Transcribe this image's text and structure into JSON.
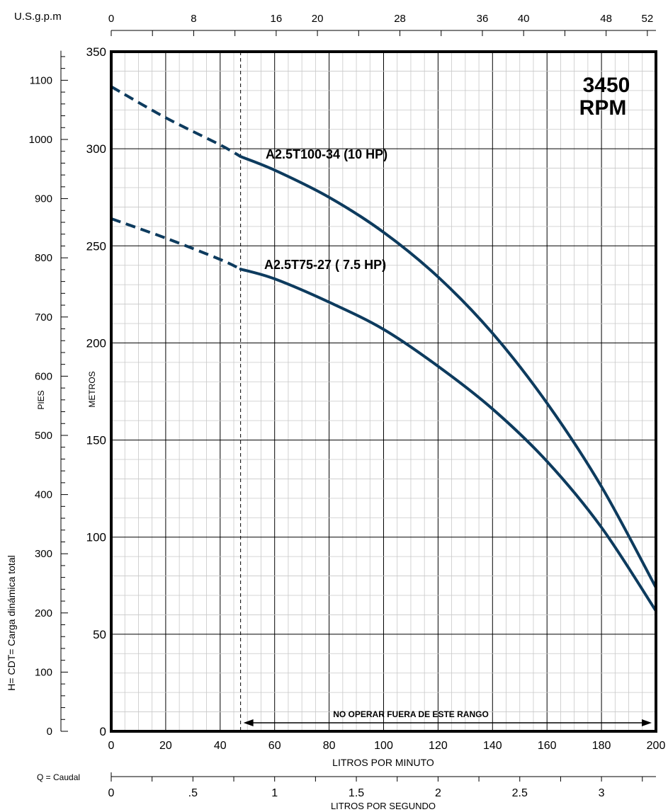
{
  "chart_data": {
    "type": "line",
    "title": "",
    "badge_line1": "3450",
    "badge_line2": "RPM",
    "x_primary": {
      "label": "LITROS POR MINUTO",
      "range": [
        0,
        200
      ],
      "ticks": [
        "0",
        "20",
        "40",
        "60",
        "80",
        "100",
        "120",
        "140",
        "160",
        "180",
        "200"
      ],
      "grid": true
    },
    "y_primary": {
      "label": "METROS",
      "range": [
        0,
        350
      ],
      "ticks": [
        "0",
        "50",
        "100",
        "150",
        "200",
        "250",
        "300",
        "350"
      ],
      "grid": true
    },
    "y_secondary": {
      "label": "PIES",
      "ticks": [
        "0",
        "100",
        "200",
        "300",
        "400",
        "500",
        "600",
        "700",
        "800",
        "900",
        "1000",
        "1100"
      ]
    },
    "y_axis_title": "H= CDT= Carga dinámica total",
    "x_top": {
      "label": "U.S.g.p.m",
      "ticks": [
        "0",
        "8",
        "16",
        "20",
        "28",
        "36",
        "40",
        "48",
        "52"
      ]
    },
    "x_bottom2": {
      "label": "LITROS POR SEGUNDO",
      "axis_name": "Q = Caudal",
      "ticks": [
        "0",
        ".5",
        "1",
        "1.5",
        "2",
        "2.5",
        "3"
      ]
    },
    "operating_range": {
      "text": "NO OPERAR FUERA DE ESTE RANGO",
      "x_start": 47.5,
      "x_end": 200
    },
    "series": [
      {
        "name": "A2.5T100-34 (10 HP)",
        "color": "#0d3b5e",
        "dashed_until_x": 47.5,
        "points": [
          [
            0,
            332
          ],
          [
            20,
            316
          ],
          [
            40,
            302
          ],
          [
            47.5,
            296
          ],
          [
            60,
            289
          ],
          [
            80,
            275
          ],
          [
            100,
            257
          ],
          [
            120,
            234
          ],
          [
            140,
            205
          ],
          [
            160,
            169
          ],
          [
            180,
            126
          ],
          [
            200,
            74
          ]
        ]
      },
      {
        "name": "A2.5T75-27 ( 7.5 HP)",
        "color": "#0d3b5e",
        "dashed_until_x": 47.5,
        "points": [
          [
            0,
            264
          ],
          [
            20,
            254
          ],
          [
            40,
            243
          ],
          [
            47.5,
            238
          ],
          [
            60,
            233
          ],
          [
            80,
            221
          ],
          [
            100,
            207
          ],
          [
            120,
            188
          ],
          [
            140,
            166
          ],
          [
            160,
            139
          ],
          [
            180,
            105
          ],
          [
            200,
            62
          ]
        ]
      }
    ]
  }
}
